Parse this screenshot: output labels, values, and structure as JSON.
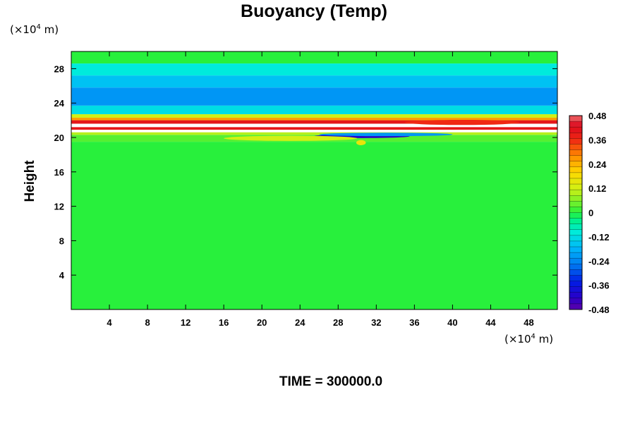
{
  "chart_data": {
    "type": "heatmap",
    "title": "Buoyancy (Temp)",
    "ylabel": "Height",
    "xlabel": "",
    "x_unit": {
      "prefix": "(×10",
      "exp": "4",
      "suffix": " m)"
    },
    "y_unit": {
      "prefix": "(×10",
      "exp": "4",
      "suffix": " m)"
    },
    "xlim": [
      0,
      51
    ],
    "ylim": [
      0,
      30
    ],
    "x_ticks": [
      4,
      8,
      12,
      16,
      20,
      24,
      28,
      32,
      36,
      40,
      44,
      48
    ],
    "y_ticks": [
      4,
      8,
      12,
      16,
      20,
      24,
      28
    ],
    "colorbar": {
      "min": -0.48,
      "max": 0.48,
      "labels": [
        "0.48",
        "0.36",
        "0.24",
        "0.12",
        "0",
        "-0.12",
        "-0.24",
        "-0.36",
        "-0.48"
      ],
      "label_values": [
        0.48,
        0.36,
        0.24,
        0.12,
        0,
        -0.12,
        -0.24,
        -0.36,
        -0.48
      ]
    },
    "field_bands": [
      {
        "y_bottom": 28.6,
        "y_top": 30,
        "value": 0.0
      },
      {
        "y_bottom": 27.2,
        "y_top": 28.6,
        "value": -0.1
      },
      {
        "y_bottom": 25.8,
        "y_top": 27.2,
        "value": -0.16
      },
      {
        "y_bottom": 23.7,
        "y_top": 25.8,
        "value": -0.22
      },
      {
        "y_bottom": 22.7,
        "y_top": 23.7,
        "value": -0.12
      },
      {
        "y_bottom": 22.3,
        "y_top": 22.7,
        "value": 0.12
      },
      {
        "y_bottom": 22.0,
        "y_top": 22.3,
        "value": 0.26
      },
      {
        "y_bottom": 21.6,
        "y_top": 22.0,
        "value": 0.4
      },
      {
        "y_bottom": 21.2,
        "y_top": 21.6,
        "value": 0.5
      },
      {
        "y_bottom": 20.9,
        "y_top": 21.2,
        "value": 0.4
      },
      {
        "y_bottom": 20.6,
        "y_top": 20.9,
        "value": 0.5
      },
      {
        "y_bottom": 20.3,
        "y_top": 20.6,
        "value": 0.1
      },
      {
        "y_bottom": 19.5,
        "y_top": 20.3,
        "value": 0.03
      },
      {
        "y_bottom": 0,
        "y_top": 19.5,
        "value": 0.0
      }
    ],
    "features": [
      {
        "x_center": 30.5,
        "y_center": 20.15,
        "x_half": 5,
        "y_half": 0.22,
        "value": -0.42
      },
      {
        "x_center": 33,
        "y_center": 20.35,
        "x_half": 7,
        "y_half": 0.2,
        "value": -0.22
      },
      {
        "x_center": 41,
        "y_center": 21.75,
        "x_half": 6,
        "y_half": 0.3,
        "value": 0.36
      },
      {
        "x_center": 23,
        "y_center": 19.9,
        "x_half": 7,
        "y_half": 0.3,
        "value": 0.12
      },
      {
        "x_center": 30.4,
        "y_center": 19.4,
        "x_half": 0.5,
        "y_half": 0.3,
        "value": 0.16
      }
    ],
    "time_label": "TIME = 300000.0"
  }
}
